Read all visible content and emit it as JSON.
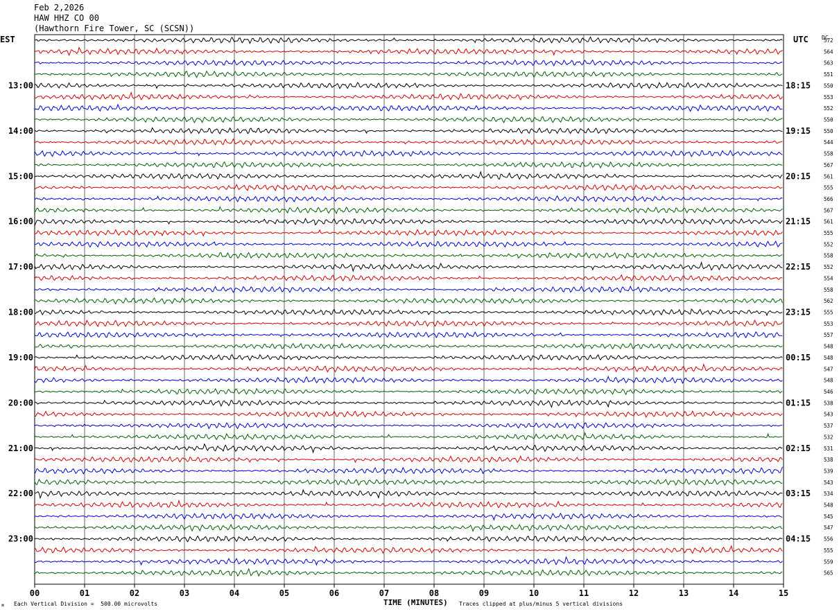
{
  "header": {
    "date": "Feb 2,2026",
    "channel": "HAW HHZ CO 00",
    "station": "(Hawthorn Fire Tower, SC (SCSN))"
  },
  "labels": {
    "left_tz": "EST",
    "right_tz": "UTC",
    "dc_label": "DC"
  },
  "footer": {
    "scale_note": "Each Vertical Division =  500.00 microvolts",
    "xlabel": "TIME (MINUTES)",
    "clip_note": "Traces clipped at plus/minus 5 vertical divisions"
  },
  "colors": {
    "trace_cycle": [
      "#000000",
      "#d40000",
      "#0000d4",
      "#006000"
    ],
    "grid": "#000000"
  },
  "chart_data": {
    "type": "line",
    "title": "HAW HHZ CO 00",
    "xlabel": "TIME (MINUTES)",
    "xlim": [
      0,
      15
    ],
    "x_ticks": [
      "00",
      "01",
      "02",
      "03",
      "04",
      "05",
      "06",
      "07",
      "08",
      "09",
      "10",
      "11",
      "12",
      "13",
      "14",
      "15"
    ],
    "row_count": 48,
    "left_hour_labels": [
      {
        "row": 4,
        "label": "13:00"
      },
      {
        "row": 8,
        "label": "14:00"
      },
      {
        "row": 12,
        "label": "15:00"
      },
      {
        "row": 16,
        "label": "16:00"
      },
      {
        "row": 20,
        "label": "17:00"
      },
      {
        "row": 24,
        "label": "18:00"
      },
      {
        "row": 28,
        "label": "19:00"
      },
      {
        "row": 32,
        "label": "20:00"
      },
      {
        "row": 36,
        "label": "21:00"
      },
      {
        "row": 40,
        "label": "22:00"
      },
      {
        "row": 44,
        "label": "23:00"
      }
    ],
    "right_hour_labels": [
      {
        "row": 4,
        "label": "18:15"
      },
      {
        "row": 8,
        "label": "19:15"
      },
      {
        "row": 12,
        "label": "20:15"
      },
      {
        "row": 16,
        "label": "21:15"
      },
      {
        "row": 20,
        "label": "22:15"
      },
      {
        "row": 24,
        "label": "23:15"
      },
      {
        "row": 28,
        "label": "00:15"
      },
      {
        "row": 32,
        "label": "01:15"
      },
      {
        "row": 36,
        "label": "02:15"
      },
      {
        "row": 40,
        "label": "03:15"
      },
      {
        "row": 44,
        "label": "04:15"
      }
    ],
    "dc_offsets": [
      572,
      564,
      563,
      551,
      550,
      553,
      552,
      550,
      550,
      544,
      558,
      567,
      561,
      555,
      566,
      567,
      561,
      555,
      552,
      558,
      552,
      554,
      558,
      562,
      555,
      553,
      557,
      548,
      548,
      547,
      548,
      546,
      538,
      543,
      537,
      532,
      531,
      538,
      539,
      543,
      534,
      548,
      545,
      547,
      556,
      555,
      559,
      565
    ]
  }
}
